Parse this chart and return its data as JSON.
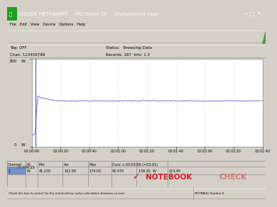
{
  "title": "GOSSEN METRAWATT     METRAwin 10     Unregistered copy",
  "window_bg": "#d4d0c8",
  "plot_bg": "#ffffff",
  "plot_border": "#808080",
  "grid_color": "#c8c8e8",
  "line_color": "#6060e0",
  "cursor_color": "#4040cc",
  "y_max": 300,
  "y_min": 0,
  "y_tick_top": "300",
  "y_tick_top_label": "W",
  "y_tick_bot": "0",
  "y_tick_bot_label": "W",
  "x_ticks_labels": [
    "00:00:00",
    "00:00:20",
    "00:00:40",
    "00:01:00",
    "00:01:20",
    "00:01:40",
    "00:02:00",
    "00:02:20",
    "00:02:40"
  ],
  "tag_text": "Tag: OFF",
  "chan_text": "Chan: 123456789",
  "status_text": "Status:   Browsing Data",
  "records_text": "Records: 187  Intv: 1.0",
  "time_label": "HH:MM:SS",
  "spike_value": 174,
  "stable_value": 157,
  "low_value": 41,
  "min_val": "41.100",
  "avg_val": "152.50",
  "max_val": "174.05",
  "cur_label": "Curs: x 00:03:06 (=03:01)",
  "cur_val1": "42.470",
  "cur_val2": "156.92",
  "cur_unit": "W",
  "right_val": "114.45",
  "channel_num": "1",
  "channel_unit": "W",
  "footer_left": "Check the box to switch On the min/avs/max value calculation between cursors",
  "footer_right": "METRAHit Starline-S",
  "titlebar_bg": "#0a0a80",
  "titlebar_fg": "white",
  "menubar_bg": "#d4d0c8",
  "toolbar_bg": "#d4d0c8",
  "infobar_bg": "#d4d0c8",
  "table_bg": "#d4d0c8",
  "table_header_bg": "#d4d0c8",
  "row_highlight": "#0000aa",
  "nb_color": "#cc2222",
  "footer_bg": "#d4d0c8"
}
